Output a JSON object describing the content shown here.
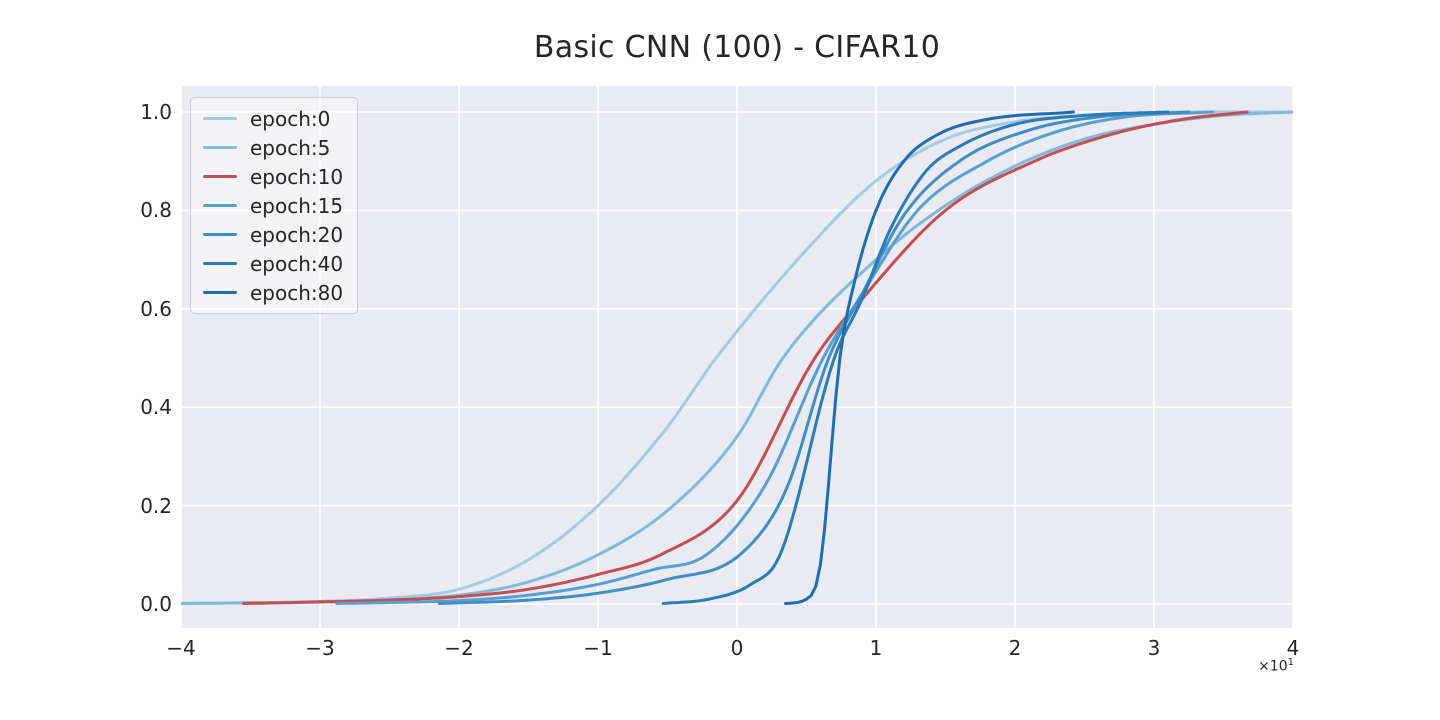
{
  "figure": {
    "background": "#ffffff",
    "plot_background": "#eaeaf2",
    "grid_color": "#ffffff",
    "text_color": "#262626"
  },
  "chart_data": {
    "type": "line",
    "title": "Basic CNN (100) - CIFAR10",
    "xlabel": "",
    "ylabel": "",
    "grid": true,
    "x_axis": {
      "tick_values": [
        -4,
        -3,
        -2,
        -1,
        0,
        1,
        2,
        3,
        4
      ],
      "tick_labels": [
        "−4",
        "−3",
        "−2",
        "−1",
        "0",
        "1",
        "2",
        "3",
        "4"
      ],
      "offset": {
        "base": "×10",
        "exp": "1"
      },
      "lim": [
        -4,
        4
      ],
      "note": "axis values are multiplied by 10^1 (true x range −40 to 40)"
    },
    "y_axis": {
      "tick_values": [
        0,
        0.2,
        0.4,
        0.6,
        0.8,
        1.0
      ],
      "tick_labels": [
        "0.0",
        "0.2",
        "0.4",
        "0.6",
        "0.8",
        "1.0"
      ],
      "lim": [
        -0.049,
        1.053
      ]
    },
    "legend": {
      "position": "upper left"
    },
    "series": [
      {
        "name": "epoch:0",
        "color": "#a3cce3",
        "points": [
          [
            -4,
            0.001
          ],
          [
            -3,
            0.005
          ],
          [
            -2.5,
            0.012
          ],
          [
            -2,
            0.03
          ],
          [
            -1.5,
            0.09
          ],
          [
            -1,
            0.2
          ],
          [
            -0.5,
            0.36
          ],
          [
            -0.15,
            0.5
          ],
          [
            0.5,
            0.72
          ],
          [
            1,
            0.86
          ],
          [
            1.5,
            0.945
          ],
          [
            2,
            0.98
          ],
          [
            2.5,
            0.993
          ],
          [
            3,
            0.999
          ],
          [
            3.5,
            1
          ],
          [
            4,
            1
          ]
        ]
      },
      {
        "name": "epoch:5",
        "color": "#7fb9db",
        "points": [
          [
            -4,
            0.001
          ],
          [
            -3,
            0.005
          ],
          [
            -2,
            0.018
          ],
          [
            -1.5,
            0.045
          ],
          [
            -1,
            0.1
          ],
          [
            -0.5,
            0.19
          ],
          [
            0,
            0.34
          ],
          [
            0.33,
            0.5
          ],
          [
            1,
            0.7
          ],
          [
            1.5,
            0.81
          ],
          [
            2,
            0.89
          ],
          [
            2.5,
            0.945
          ],
          [
            3,
            0.975
          ],
          [
            3.5,
            0.993
          ],
          [
            4,
            1
          ]
        ]
      },
      {
        "name": "epoch:10",
        "color": "#c44e52",
        "points": [
          [
            -3.55,
            0.001
          ],
          [
            -3,
            0.004
          ],
          [
            -2.5,
            0.008
          ],
          [
            -2,
            0.015
          ],
          [
            -1.5,
            0.03
          ],
          [
            -1,
            0.06
          ],
          [
            -0.55,
            0.1
          ],
          [
            0,
            0.21
          ],
          [
            0.56,
            0.5
          ],
          [
            0.9,
            0.62
          ],
          [
            1.5,
            0.8
          ],
          [
            2.14,
            0.9
          ],
          [
            2.7,
            0.955
          ],
          [
            3.2,
            0.985
          ],
          [
            3.67,
            1
          ]
        ]
      },
      {
        "name": "epoch:15",
        "color": "#569fce",
        "points": [
          [
            -2.88,
            0.001
          ],
          [
            -2.5,
            0.003
          ],
          [
            -2,
            0.007
          ],
          [
            -1.5,
            0.018
          ],
          [
            -1,
            0.04
          ],
          [
            -0.6,
            0.07
          ],
          [
            -0.22,
            0.1
          ],
          [
            0.2,
            0.24
          ],
          [
            0.62,
            0.5
          ],
          [
            0.9,
            0.63
          ],
          [
            1.3,
            0.8
          ],
          [
            1.8,
            0.9
          ],
          [
            2.3,
            0.96
          ],
          [
            2.8,
            0.99
          ],
          [
            3.42,
            1
          ]
        ]
      },
      {
        "name": "epoch:20",
        "color": "#3f8ec4",
        "points": [
          [
            -2.14,
            0.001
          ],
          [
            -1.5,
            0.008
          ],
          [
            -1,
            0.022
          ],
          [
            -0.5,
            0.05
          ],
          [
            0.02,
            0.1
          ],
          [
            0.35,
            0.23
          ],
          [
            0.66,
            0.5
          ],
          [
            0.9,
            0.63
          ],
          [
            1.2,
            0.79
          ],
          [
            1.6,
            0.9
          ],
          [
            2.1,
            0.963
          ],
          [
            2.6,
            0.99
          ],
          [
            3.25,
            1
          ]
        ]
      },
      {
        "name": "epoch:40",
        "color": "#2b7ab9",
        "points": [
          [
            -0.53,
            0.001
          ],
          [
            -0.2,
            0.01
          ],
          [
            0.1,
            0.04
          ],
          [
            0.31,
            0.1
          ],
          [
            0.7,
            0.5
          ],
          [
            0.9,
            0.62
          ],
          [
            1.1,
            0.76
          ],
          [
            1.36,
            0.88
          ],
          [
            1.6,
            0.93
          ],
          [
            2,
            0.975
          ],
          [
            2.5,
            0.993
          ],
          [
            3.1,
            1
          ]
        ]
      },
      {
        "name": "epoch:80",
        "color": "#1f6db1",
        "points": [
          [
            0.35,
            0.001
          ],
          [
            0.5,
            0.01
          ],
          [
            0.6,
            0.08
          ],
          [
            0.74,
            0.5
          ],
          [
            0.85,
            0.66
          ],
          [
            1,
            0.8
          ],
          [
            1.2,
            0.9
          ],
          [
            1.45,
            0.955
          ],
          [
            1.8,
            0.985
          ],
          [
            2.42,
            1
          ]
        ]
      }
    ]
  }
}
